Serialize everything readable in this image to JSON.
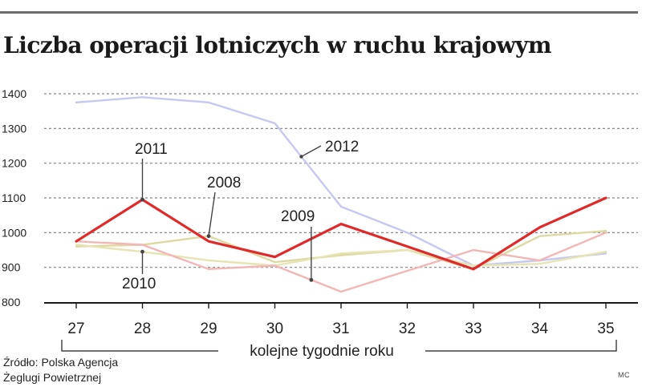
{
  "title": "Liczba operacji lotniczych w ruchu krajowym",
  "source_lines": [
    "Źródło: Polska Agencja",
    "Żeglugi Powietrznej"
  ],
  "credit": "MC",
  "chart_data": {
    "type": "line",
    "title": "Liczba operacji lotniczych w ruchu krajowym",
    "xlabel": "kolejne tygodnie roku",
    "ylabel": "",
    "x": [
      27,
      28,
      29,
      30,
      31,
      32,
      33,
      34,
      35
    ],
    "ylim": [
      800,
      1400
    ],
    "yticks": [
      800,
      900,
      1000,
      1100,
      1200,
      1300,
      1400
    ],
    "grid": "horizontal dashed",
    "series": [
      {
        "name": "2012",
        "color": "#c5c8f2",
        "values": [
          1375,
          1390,
          1375,
          1315,
          1075,
          1000,
          905,
          920,
          940
        ]
      },
      {
        "name": "2008",
        "color": "#ddd9a0",
        "values": [
          960,
          965,
          990,
          915,
          935,
          950,
          895,
          990,
          1005
        ]
      },
      {
        "name": "2010",
        "color": "#e5e4b2",
        "values": [
          965,
          945,
          920,
          905,
          940,
          950,
          905,
          910,
          945
        ]
      },
      {
        "name": "2009",
        "color": "#f3b6b6",
        "values": [
          975,
          965,
          895,
          905,
          830,
          890,
          950,
          920,
          1000
        ]
      },
      {
        "name": "2011",
        "color": "#e02a2a",
        "values": [
          975,
          1095,
          975,
          930,
          1025,
          960,
          895,
          1015,
          1100
        ]
      }
    ],
    "annotations": [
      {
        "label": "2011",
        "series": "2011",
        "x": 28
      },
      {
        "label": "2008",
        "series": "2008",
        "x": 29
      },
      {
        "label": "2012",
        "series": "2012",
        "x": 30.4
      },
      {
        "label": "2009",
        "series": "2009",
        "x": 30.55
      },
      {
        "label": "2010",
        "series": "2010",
        "x": 28
      }
    ]
  }
}
